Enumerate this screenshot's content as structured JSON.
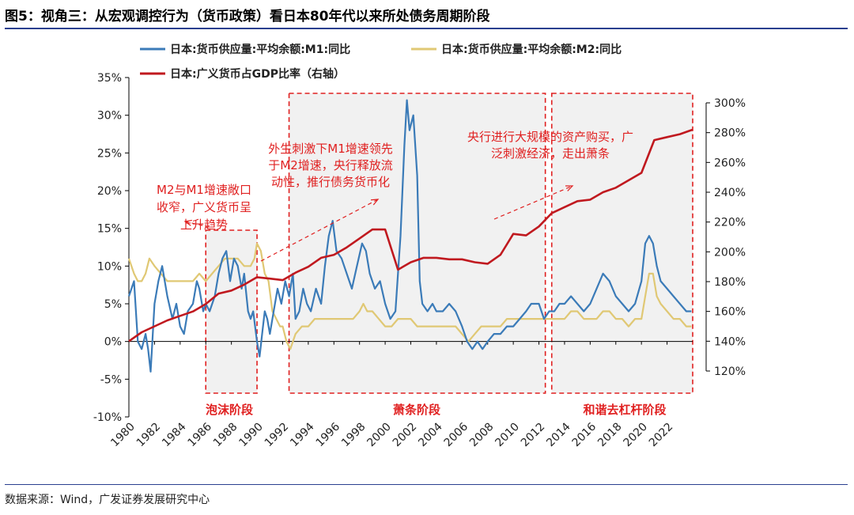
{
  "figure": {
    "title": "图5：视角三：从宏观调控行为（货币政策）看日本80年代以来所处债务周期阶段",
    "source": "数据来源：Wind，广发证券发展研究中心"
  },
  "chart_data": {
    "type": "line",
    "legend": [
      {
        "key": "m1",
        "label": "日本:货币供应量:平均余额:M1:同比",
        "color": "#3b7bb8"
      },
      {
        "key": "m2",
        "label": "日本:货币供应量:平均余额:M2:同比",
        "color": "#e0c874"
      },
      {
        "key": "gdp",
        "label": "日本:广义货币占GDP比率（右轴）",
        "color": "#c0191f"
      }
    ],
    "y_left": {
      "min": -10,
      "max": 35,
      "ticks": [
        "-10%",
        "-5%",
        "0%",
        "5%",
        "10%",
        "15%",
        "20%",
        "25%",
        "30%",
        "35%"
      ]
    },
    "y_right": {
      "min": 120,
      "max": 300,
      "ticks": [
        "120%",
        "140%",
        "160%",
        "180%",
        "200%",
        "220%",
        "240%",
        "260%",
        "280%",
        "300%"
      ]
    },
    "x": {
      "min": 1980,
      "max": 2024,
      "ticks": [
        "1980",
        "1982",
        "1984",
        "1986",
        "1988",
        "1990",
        "1992",
        "1994",
        "1996",
        "1998",
        "2000",
        "2002",
        "2004",
        "2006",
        "2008",
        "2010",
        "2012",
        "2014",
        "2016",
        "2018",
        "2020",
        "2022"
      ]
    },
    "series": [
      {
        "key": "m1",
        "points": [
          [
            1980,
            6
          ],
          [
            1980.4,
            8
          ],
          [
            1980.7,
            0
          ],
          [
            1981,
            -1
          ],
          [
            1981.3,
            1
          ],
          [
            1981.5,
            -1
          ],
          [
            1981.7,
            -4
          ],
          [
            1982,
            5
          ],
          [
            1982.3,
            8
          ],
          [
            1982.6,
            10
          ],
          [
            1983,
            6
          ],
          [
            1983.4,
            3
          ],
          [
            1983.7,
            5
          ],
          [
            1984,
            2
          ],
          [
            1984.3,
            1
          ],
          [
            1984.6,
            4
          ],
          [
            1985,
            5
          ],
          [
            1985.3,
            8
          ],
          [
            1985.5,
            7
          ],
          [
            1985.8,
            4
          ],
          [
            1986,
            5
          ],
          [
            1986.3,
            4
          ],
          [
            1986.7,
            6
          ],
          [
            1987,
            9
          ],
          [
            1987.3,
            11
          ],
          [
            1987.6,
            12
          ],
          [
            1987.9,
            8
          ],
          [
            1988.2,
            11
          ],
          [
            1988.5,
            10
          ],
          [
            1988.8,
            7
          ],
          [
            1989,
            9
          ],
          [
            1989.3,
            4
          ],
          [
            1989.5,
            3
          ],
          [
            1989.7,
            4
          ],
          [
            1990,
            0
          ],
          [
            1990.2,
            -2
          ],
          [
            1990.4,
            1
          ],
          [
            1990.6,
            4
          ],
          [
            1990.8,
            3
          ],
          [
            1991,
            1
          ],
          [
            1991.3,
            4
          ],
          [
            1991.6,
            7
          ],
          [
            1991.9,
            5
          ],
          [
            1992.2,
            8
          ],
          [
            1992.5,
            6
          ],
          [
            1992.8,
            9
          ],
          [
            1993,
            3
          ],
          [
            1993.3,
            4
          ],
          [
            1993.6,
            7
          ],
          [
            1993.9,
            5
          ],
          [
            1994.2,
            4
          ],
          [
            1994.6,
            7
          ],
          [
            1995,
            5
          ],
          [
            1995.3,
            10
          ],
          [
            1995.6,
            14
          ],
          [
            1995.9,
            16
          ],
          [
            1996.2,
            12
          ],
          [
            1996.6,
            11
          ],
          [
            1997,
            9
          ],
          [
            1997.4,
            7
          ],
          [
            1997.8,
            10
          ],
          [
            1998.2,
            13
          ],
          [
            1998.5,
            12
          ],
          [
            1998.8,
            9
          ],
          [
            1999.2,
            7
          ],
          [
            1999.6,
            8
          ],
          [
            2000,
            5
          ],
          [
            2000.4,
            3
          ],
          [
            2000.8,
            4
          ],
          [
            2001.2,
            14
          ],
          [
            2001.5,
            26
          ],
          [
            2001.7,
            32
          ],
          [
            2001.9,
            28
          ],
          [
            2002.2,
            30
          ],
          [
            2002.5,
            22
          ],
          [
            2002.7,
            8
          ],
          [
            2002.9,
            5
          ],
          [
            2003.3,
            4
          ],
          [
            2003.7,
            5
          ],
          [
            2004,
            4
          ],
          [
            2004.5,
            4
          ],
          [
            2005,
            5
          ],
          [
            2005.5,
            4
          ],
          [
            2006,
            2
          ],
          [
            2006.4,
            0
          ],
          [
            2006.8,
            -1
          ],
          [
            2007.2,
            0
          ],
          [
            2007.6,
            -1
          ],
          [
            2008,
            0
          ],
          [
            2008.5,
            1
          ],
          [
            2009,
            1
          ],
          [
            2009.5,
            2
          ],
          [
            2010,
            2
          ],
          [
            2010.5,
            3
          ],
          [
            2011,
            4
          ],
          [
            2011.4,
            5
          ],
          [
            2012,
            5
          ],
          [
            2012.4,
            3
          ],
          [
            2012.8,
            4
          ],
          [
            2013.2,
            4
          ],
          [
            2013.6,
            5
          ],
          [
            2014,
            5
          ],
          [
            2014.5,
            6
          ],
          [
            2015,
            5
          ],
          [
            2015.5,
            4
          ],
          [
            2016,
            5
          ],
          [
            2016.5,
            7
          ],
          [
            2017,
            9
          ],
          [
            2017.5,
            8
          ],
          [
            2018,
            6
          ],
          [
            2018.5,
            5
          ],
          [
            2019,
            4
          ],
          [
            2019.5,
            5
          ],
          [
            2020,
            8
          ],
          [
            2020.3,
            13
          ],
          [
            2020.6,
            14
          ],
          [
            2020.9,
            13
          ],
          [
            2021.2,
            10
          ],
          [
            2021.5,
            8
          ],
          [
            2022,
            7
          ],
          [
            2022.5,
            6
          ],
          [
            2023,
            5
          ],
          [
            2023.5,
            4
          ],
          [
            2023.9,
            4
          ]
        ]
      },
      {
        "key": "m2",
        "points": [
          [
            1980,
            11
          ],
          [
            1980.4,
            9
          ],
          [
            1980.7,
            8
          ],
          [
            1981,
            8
          ],
          [
            1981.3,
            9
          ],
          [
            1981.6,
            11
          ],
          [
            1982,
            10
          ],
          [
            1982.5,
            9
          ],
          [
            1983,
            8
          ],
          [
            1983.5,
            8
          ],
          [
            1984,
            8
          ],
          [
            1984.5,
            8
          ],
          [
            1985,
            8
          ],
          [
            1985.5,
            9
          ],
          [
            1986,
            8
          ],
          [
            1986.5,
            9
          ],
          [
            1987,
            10
          ],
          [
            1987.5,
            11
          ],
          [
            1988,
            11
          ],
          [
            1988.5,
            11
          ],
          [
            1989,
            10
          ],
          [
            1989.5,
            10
          ],
          [
            1989.8,
            11
          ],
          [
            1990,
            13
          ],
          [
            1990.3,
            12
          ],
          [
            1990.6,
            9
          ],
          [
            1990.9,
            8
          ],
          [
            1991.2,
            4
          ],
          [
            1991.5,
            3
          ],
          [
            1991.8,
            2
          ],
          [
            1992,
            2
          ],
          [
            1992.3,
            0
          ],
          [
            1992.6,
            -1
          ],
          [
            1993,
            1
          ],
          [
            1993.5,
            2
          ],
          [
            1994,
            2
          ],
          [
            1994.5,
            3
          ],
          [
            1995,
            3
          ],
          [
            1995.5,
            3
          ],
          [
            1996,
            3
          ],
          [
            1996.5,
            3
          ],
          [
            1997,
            3
          ],
          [
            1997.5,
            3
          ],
          [
            1998,
            4
          ],
          [
            1998.3,
            5
          ],
          [
            1998.6,
            4
          ],
          [
            1999,
            4
          ],
          [
            1999.5,
            3
          ],
          [
            2000,
            2
          ],
          [
            2000.5,
            2
          ],
          [
            2001,
            3
          ],
          [
            2001.5,
            3
          ],
          [
            2002,
            3
          ],
          [
            2002.5,
            2
          ],
          [
            2003,
            2
          ],
          [
            2003.5,
            2
          ],
          [
            2004,
            2
          ],
          [
            2004.5,
            2
          ],
          [
            2005,
            2
          ],
          [
            2005.5,
            2
          ],
          [
            2006,
            1
          ],
          [
            2006.5,
            0
          ],
          [
            2007,
            1
          ],
          [
            2007.5,
            2
          ],
          [
            2008,
            2
          ],
          [
            2008.5,
            2
          ],
          [
            2009,
            2
          ],
          [
            2009.5,
            3
          ],
          [
            2010,
            3
          ],
          [
            2010.5,
            3
          ],
          [
            2011,
            3
          ],
          [
            2011.5,
            3
          ],
          [
            2012,
            3
          ],
          [
            2012.5,
            3
          ],
          [
            2013,
            3
          ],
          [
            2013.5,
            3
          ],
          [
            2014,
            3
          ],
          [
            2014.5,
            4
          ],
          [
            2015,
            4
          ],
          [
            2015.5,
            3
          ],
          [
            2016,
            3
          ],
          [
            2016.5,
            3
          ],
          [
            2017,
            4
          ],
          [
            2017.5,
            4
          ],
          [
            2018,
            3
          ],
          [
            2018.5,
            3
          ],
          [
            2019,
            2
          ],
          [
            2019.5,
            3
          ],
          [
            2020,
            3
          ],
          [
            2020.3,
            6
          ],
          [
            2020.6,
            9
          ],
          [
            2020.9,
            9
          ],
          [
            2021.2,
            6
          ],
          [
            2021.5,
            5
          ],
          [
            2022,
            4
          ],
          [
            2022.5,
            3
          ],
          [
            2023,
            3
          ],
          [
            2023.5,
            2
          ],
          [
            2023.9,
            2
          ]
        ]
      },
      {
        "key": "gdp",
        "points": [
          [
            1980,
            140
          ],
          [
            1981,
            146
          ],
          [
            1982,
            150
          ],
          [
            1983,
            154
          ],
          [
            1984,
            157
          ],
          [
            1985,
            160
          ],
          [
            1986,
            165
          ],
          [
            1987,
            172
          ],
          [
            1988,
            174
          ],
          [
            1989,
            178
          ],
          [
            1990,
            183
          ],
          [
            1991,
            182
          ],
          [
            1992,
            181
          ],
          [
            1993,
            186
          ],
          [
            1994,
            190
          ],
          [
            1995,
            196
          ],
          [
            1996,
            198
          ],
          [
            1997,
            203
          ],
          [
            1998,
            209
          ],
          [
            1999,
            215
          ],
          [
            2000,
            215
          ],
          [
            2001,
            188
          ],
          [
            2002,
            193
          ],
          [
            2003,
            196
          ],
          [
            2004,
            196
          ],
          [
            2005,
            195
          ],
          [
            2006,
            195
          ],
          [
            2007,
            193
          ],
          [
            2008,
            192
          ],
          [
            2009,
            198
          ],
          [
            2010,
            212
          ],
          [
            2011,
            211
          ],
          [
            2012,
            217
          ],
          [
            2013,
            226
          ],
          [
            2014,
            230
          ],
          [
            2015,
            234
          ],
          [
            2016,
            235
          ],
          [
            2017,
            240
          ],
          [
            2018,
            243
          ],
          [
            2019,
            248
          ],
          [
            2020,
            253
          ],
          [
            2021,
            275
          ],
          [
            2022,
            277
          ],
          [
            2023,
            279
          ],
          [
            2024,
            282
          ]
        ]
      }
    ],
    "phases": [
      {
        "label": "泡沫阶段"
      },
      {
        "label": "萧条阶段"
      },
      {
        "label": "和谐去杠杆阶段"
      }
    ],
    "annotations": [
      {
        "lines": [
          "M2与M1增速敞口",
          "收窄，广义货币呈",
          "上升趋势"
        ]
      },
      {
        "lines": [
          "外生刺激下M1增速领先",
          "于M2增速，央行释放流",
          "动性，推行债务货币化"
        ]
      },
      {
        "lines": [
          "央行进行大规模的资产购买，广",
          "泛刺激经济，走出萧条"
        ]
      }
    ]
  }
}
